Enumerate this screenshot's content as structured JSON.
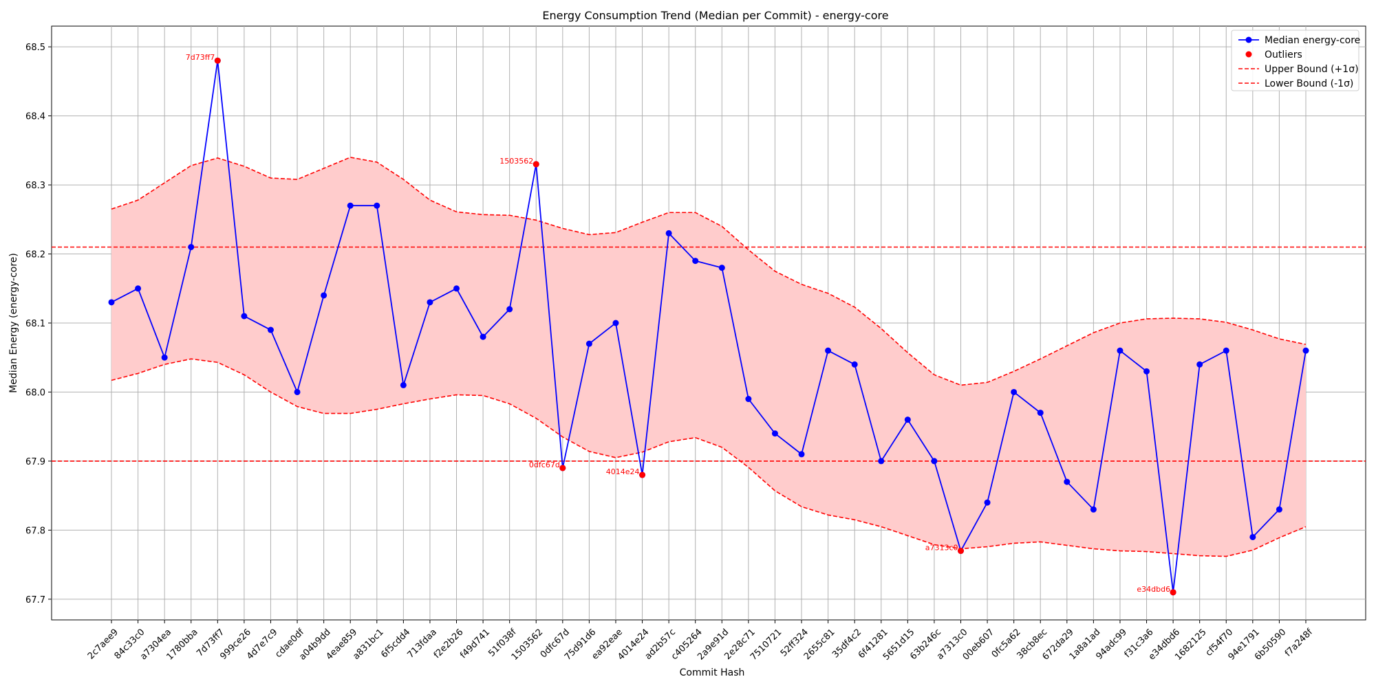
{
  "chart_data": {
    "type": "line",
    "title": "Energy Consumption Trend (Median per Commit) - energy-core",
    "xlabel": "Commit Hash",
    "ylabel": "Median Energy (energy-core)",
    "ylim": [
      67.67,
      68.53
    ],
    "yticks": [
      67.7,
      67.8,
      67.9,
      68.0,
      68.1,
      68.2,
      68.3,
      68.4,
      68.5
    ],
    "grid": true,
    "legend_placement": "top-right",
    "categories": [
      "2c7aee9",
      "84c33c0",
      "a7304ea",
      "1780bba",
      "7d73ff7",
      "999ce26",
      "4d7e7c9",
      "cdae0df",
      "a04b9dd",
      "4eae859",
      "a831bc1",
      "6f5cdd4",
      "713fdaa",
      "f2e2b26",
      "f49d741",
      "51f038f",
      "1503562",
      "0dfc67d",
      "75d91d6",
      "ea92eae",
      "4014e24",
      "ad2b57c",
      "c405264",
      "2a9e91d",
      "2e28c71",
      "7510721",
      "52ff324",
      "2655c81",
      "35df4c2",
      "6f41281",
      "5651d15",
      "63b246c",
      "a7313c0",
      "00eb607",
      "0fc5a62",
      "38cb8ec",
      "672da29",
      "1a8a1ad",
      "94adc99",
      "f31c3a6",
      "e34dbd6",
      "1682125",
      "cf54f70",
      "94e1791",
      "6b50590",
      "f7a248f"
    ],
    "series": [
      {
        "name": "Median energy-core",
        "color": "#0000ff",
        "values": [
          68.13,
          68.15,
          68.05,
          68.21,
          68.48,
          68.11,
          68.09,
          68.0,
          68.14,
          68.27,
          68.27,
          68.01,
          68.13,
          68.15,
          68.08,
          68.12,
          68.33,
          67.89,
          68.07,
          68.1,
          67.88,
          68.23,
          68.19,
          68.18,
          67.99,
          67.94,
          67.91,
          68.06,
          68.04,
          67.9,
          67.96,
          67.9,
          67.77,
          67.84,
          68.0,
          67.97,
          67.87,
          67.83,
          68.06,
          68.03,
          67.71,
          68.04,
          68.06,
          67.79,
          67.83,
          68.06
        ]
      },
      {
        "name": "Upper Bound (+1σ)",
        "color": "#ff0000",
        "values": [
          68.265,
          68.278,
          68.303,
          68.328,
          68.339,
          68.327,
          68.31,
          68.308,
          68.324,
          68.34,
          68.333,
          68.308,
          68.278,
          68.261,
          68.257,
          68.256,
          68.249,
          68.237,
          68.228,
          68.231,
          68.246,
          68.26,
          68.26,
          68.24,
          68.206,
          68.175,
          68.156,
          68.143,
          68.123,
          68.092,
          68.057,
          68.025,
          68.01,
          68.014,
          68.03,
          68.048,
          68.067,
          68.086,
          68.1,
          68.106,
          68.107,
          68.106,
          68.101,
          68.09,
          68.077,
          68.069
        ]
      },
      {
        "name": "Lower Bound (-1σ)",
        "color": "#ff0000",
        "values": [
          68.017,
          68.027,
          68.04,
          68.048,
          68.043,
          68.025,
          68.0,
          67.979,
          67.969,
          67.969,
          67.975,
          67.983,
          67.99,
          67.996,
          67.995,
          67.983,
          67.962,
          67.935,
          67.914,
          67.905,
          67.913,
          67.928,
          67.934,
          67.92,
          67.891,
          67.857,
          67.834,
          67.822,
          67.815,
          67.805,
          67.792,
          67.779,
          67.773,
          67.776,
          67.781,
          67.783,
          67.778,
          67.773,
          67.77,
          67.769,
          67.766,
          67.763,
          67.762,
          67.771,
          67.789,
          67.805
        ]
      }
    ],
    "outliers": [
      {
        "label": "7d73ff7",
        "x": "7d73ff7",
        "y": 68.48
      },
      {
        "label": "1503562",
        "x": "1503562",
        "y": 68.33
      },
      {
        "label": "0dfc67d",
        "x": "0dfc67d",
        "y": 67.89
      },
      {
        "label": "4014e24",
        "x": "4014e24",
        "y": 67.88
      },
      {
        "label": "a7313c0",
        "x": "a7313c0",
        "y": 67.77
      },
      {
        "label": "e34dbd6",
        "x": "e34dbd6",
        "y": 67.71
      }
    ],
    "horizontal_lines": [
      68.21,
      67.9
    ],
    "legend": [
      {
        "label": "Median energy-core",
        "style": "line-marker",
        "color": "#0000ff"
      },
      {
        "label": "Outliers",
        "style": "marker",
        "color": "#ff0000"
      },
      {
        "label": "Upper Bound (+1σ)",
        "style": "dashed",
        "color": "#ff0000"
      },
      {
        "label": "Lower Bound (-1σ)",
        "style": "dashed",
        "color": "#ff0000"
      }
    ],
    "band_color": "#ffcccc"
  }
}
